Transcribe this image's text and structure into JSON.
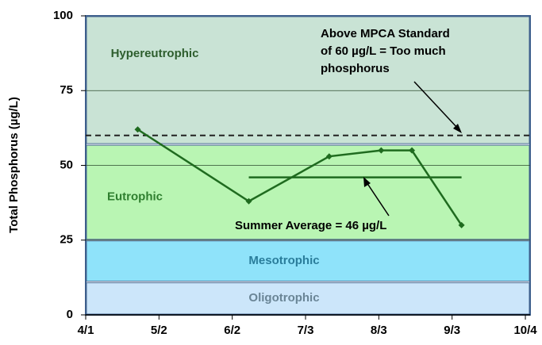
{
  "chart_data": {
    "type": "line",
    "y_label": "Total Phosphorus (µg/L)",
    "xlim": [
      91,
      279
    ],
    "ylim": [
      0,
      100
    ],
    "xticks": [
      {
        "value": 91,
        "label": "4/1"
      },
      {
        "value": 122,
        "label": "5/2"
      },
      {
        "value": 153,
        "label": "6/2"
      },
      {
        "value": 184,
        "label": "7/3"
      },
      {
        "value": 215,
        "label": "8/3"
      },
      {
        "value": 246,
        "label": "9/3"
      },
      {
        "value": 277,
        "label": "10/4"
      }
    ],
    "yticks": [
      0,
      25,
      50,
      75,
      100
    ],
    "grid": true,
    "bands": [
      {
        "label": "Oligotrophic",
        "from": 0,
        "to": 11,
        "color": "#cce6fa"
      },
      {
        "label": "Mesotrophic",
        "from": 11,
        "to": 25,
        "color": "#8fe3fa"
      },
      {
        "label": "Eutrophic",
        "from": 25,
        "to": 57,
        "color": "#b9f5b3"
      },
      {
        "label": "Hypereutrophic",
        "from": 57,
        "to": 100,
        "color": "#c9e3d5"
      }
    ],
    "standard": 60,
    "average": {
      "value": 46,
      "x": [
        160,
        250
      ]
    },
    "series": [
      {
        "color": "#1f6b1f",
        "x": [
          113,
          160,
          194,
          216,
          229,
          250
        ],
        "values": [
          62,
          38,
          53,
          55,
          55,
          30
        ]
      }
    ],
    "annotations": [
      {
        "lines": [
          "Above MPCA Standard",
          "of 60 µg/L = Too much",
          "phosphorus"
        ]
      },
      {
        "lines": [
          "Summer Average = 46 µg/L"
        ]
      }
    ]
  }
}
